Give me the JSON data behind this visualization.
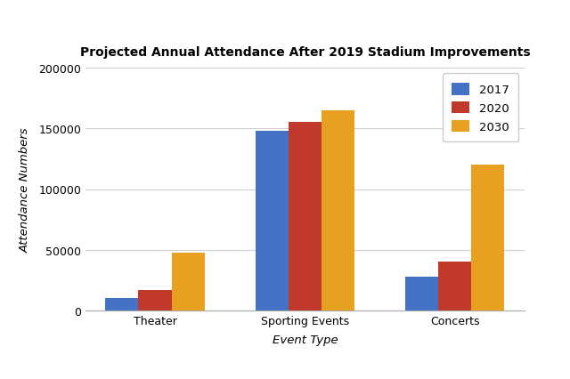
{
  "title": "Projected Annual Attendance After 2019 Stadium Improvements",
  "xlabel": "Event Type",
  "ylabel": "Attendance Numbers",
  "categories": [
    "Theater",
    "Sporting Events",
    "Concerts"
  ],
  "series": {
    "2017": [
      10000,
      148000,
      28000
    ],
    "2020": [
      17000,
      155000,
      40000
    ],
    "2030": [
      48000,
      165000,
      120000
    ]
  },
  "colors": {
    "2017": "#4472c4",
    "2020": "#c0392b",
    "2030": "#e8a020"
  },
  "ylim": [
    0,
    200000
  ],
  "yticks": [
    0,
    50000,
    100000,
    150000,
    200000
  ],
  "bar_width": 0.22,
  "legend_loc": "upper right",
  "background_color": "#ffffff",
  "plot_bg_color": "#ffffff",
  "grid_color": "#d0d0d0",
  "title_fontsize": 10,
  "axis_label_fontsize": 9.5,
  "tick_fontsize": 9,
  "legend_fontsize": 9.5
}
